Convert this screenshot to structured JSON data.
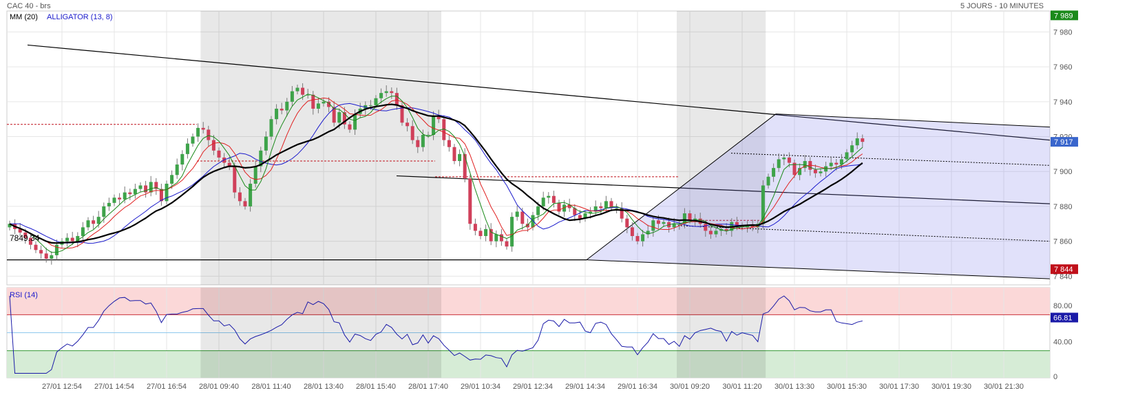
{
  "header": {
    "instrument": "CAC 40 - brs",
    "period": "5 JOURS - 10 MINUTES"
  },
  "chart_data": [
    {
      "type": "candlestick",
      "panel": "price",
      "legend": [
        {
          "label": "MM (20)",
          "color": "#000000"
        },
        {
          "label": "ALLIGATOR (13, 8)",
          "color": "#1a1acc"
        }
      ],
      "x_tick_labels": [
        "27/01 12:54",
        "27/01 14:54",
        "27/01 16:54",
        "28/01 09:40",
        "28/01 11:40",
        "28/01 13:40",
        "28/01 15:40",
        "28/01 17:40",
        "29/01 10:34",
        "29/01 12:34",
        "29/01 14:34",
        "29/01 16:34",
        "30/01 09:20",
        "30/01 11:20",
        "30/01 13:30",
        "30/01 15:30",
        "30/01 17:30",
        "30/01 19:30",
        "30/01 21:30"
      ],
      "x_tick_bars": [
        10,
        20,
        30,
        40,
        50,
        60,
        70,
        80,
        90,
        100,
        110,
        120,
        130,
        140,
        150,
        160,
        170,
        180,
        190
      ],
      "y_ticks": [
        7840,
        7860,
        7880,
        7900,
        7920,
        7940,
        7960,
        7980
      ],
      "ylim": [
        7835,
        7992
      ],
      "y_tick_labels": [
        "7 840",
        "7 860",
        "7 880",
        "7 900",
        "7 920",
        "7 940",
        "7 960",
        "7 980"
      ],
      "markers": [
        {
          "label": "7 989",
          "value": 7989.5,
          "color": "#1a8a1a"
        },
        {
          "label": "7 917",
          "value": 7917,
          "color": "#3a66cc"
        },
        {
          "label": "7 844",
          "value": 7844,
          "color": "#c0101a"
        }
      ],
      "support_label": "7849.34",
      "support_value": 7849.34,
      "shaded_sessions": [
        [
          37,
          82
        ],
        [
          128,
          144
        ]
      ],
      "candle_closes": [
        7870,
        7867,
        7865,
        7862,
        7858,
        7855,
        7853,
        7850,
        7852,
        7858,
        7860,
        7862,
        7860,
        7863,
        7868,
        7872,
        7870,
        7874,
        7880,
        7882,
        7885,
        7884,
        7888,
        7887,
        7890,
        7892,
        7888,
        7894,
        7890,
        7883,
        7893,
        7898,
        7904,
        7910,
        7916,
        7920,
        7925,
        7924,
        7918,
        7912,
        7908,
        7905,
        7903,
        7888,
        7883,
        7880,
        7893,
        7903,
        7912,
        7920,
        7930,
        7936,
        7935,
        7940,
        7946,
        7948,
        7944,
        7944,
        7936,
        7939,
        7940,
        7937,
        7928,
        7934,
        7927,
        7924,
        7933,
        7936,
        7938,
        7938,
        7942,
        7945,
        7946,
        7945,
        7938,
        7928,
        7926,
        7918,
        7914,
        7921,
        7921,
        7932,
        7930,
        7918,
        7914,
        7906,
        7910,
        7896,
        7870,
        7866,
        7863,
        7867,
        7860,
        7864,
        7860,
        7857,
        7874,
        7877,
        7870,
        7868,
        7875,
        7880,
        7885,
        7886,
        7882,
        7877,
        7881,
        7879,
        7875,
        7873,
        7876,
        7877,
        7880,
        7879,
        7883,
        7879,
        7879,
        7873,
        7868,
        7863,
        7860,
        7864,
        7866,
        7872,
        7870,
        7871,
        7868,
        7870,
        7870,
        7876,
        7872,
        7873,
        7870,
        7866,
        7864,
        7866,
        7867,
        7866,
        7871,
        7869,
        7868,
        7869,
        7868,
        7870,
        7892,
        7897,
        7902,
        7907,
        7908,
        7905,
        7898,
        7902,
        7906,
        7901,
        7899,
        7900,
        7903,
        7905,
        7904,
        7907,
        7911,
        7915,
        7919,
        7917
      ],
      "mm20": [
        7885,
        7882,
        7877,
        7870,
        7863,
        7857,
        7856,
        7857,
        7858,
        7859,
        7859,
        7860,
        7860,
        7861,
        7862,
        7864,
        7866,
        7868,
        7870,
        7872,
        7875,
        7878,
        7881,
        7884,
        7887,
        7889,
        7892,
        7894,
        7896,
        7898,
        7899,
        7900,
        7901,
        7902,
        7903,
        7904,
        7906,
        7908,
        7910,
        7912,
        7914,
        7916,
        7918,
        7920,
        7922,
        7925,
        7928,
        7931,
        7934,
        7936,
        7938,
        7939,
        7940,
        7940,
        7940,
        7940,
        7940,
        7939,
        7938,
        7937,
        7935,
        7932,
        7928,
        7922,
        7915,
        7908,
        7900,
        7893,
        7887,
        7882,
        7879,
        7876,
        7874,
        7873,
        7873,
        7874,
        7875,
        7876,
        7877,
        7876,
        7874,
        7872,
        7870,
        7868,
        7868,
        7868,
        7868,
        7868,
        7868,
        7868,
        7869,
        7872,
        7876,
        7880,
        7885,
        7890,
        7895,
        7899,
        7903
      ],
      "mm20_start_bar": 0,
      "rsi_label": "RSI (14)",
      "rsi_ylim": [
        0,
        100
      ],
      "rsi_ticks": [
        0,
        40,
        80
      ],
      "rsi_tick_labels": [
        "0",
        "40.00",
        "80.00"
      ],
      "rsi_last_label": "66.81",
      "rsi_last_value": 66.81,
      "rsi_overbought": 70,
      "rsi_oversold": 30
    }
  ]
}
